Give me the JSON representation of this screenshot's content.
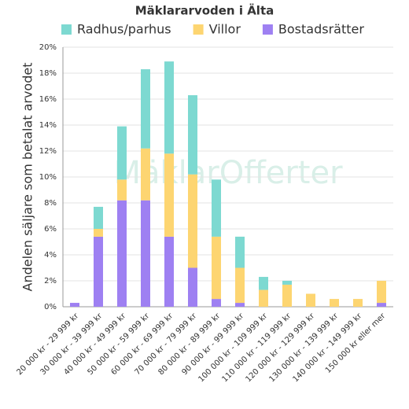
{
  "chart_data": {
    "type": "stacked_bar",
    "title": "Mäklararvoden i Älta",
    "watermark": "MäklarOfferter",
    "y_label": "Andelen säljare som betalat arvodet",
    "categories": [
      "20 000 kr - 29 999 kr",
      "30 000 kr - 39 999 kr",
      "40 000 kr - 49 999 kr",
      "50 000 kr - 59 999 kr",
      "60 000 kr - 69 999 kr",
      "70 000 kr - 79 999 kr",
      "80 000 kr - 89 999 kr",
      "90 000 kr - 99 999 kr",
      "100 000 kr - 109 999 kr",
      "110 000 kr - 119 999 kr",
      "120 000 kr - 129 999 kr",
      "130 000 kr - 139 999 kr",
      "140 000 kr - 149 999 kr",
      "150 000 kr eller mer"
    ],
    "series": [
      {
        "name": "Bostadsrätter",
        "color": "#9e80f2",
        "values": [
          0.3,
          5.4,
          8.2,
          8.2,
          5.4,
          3.0,
          0.6,
          0.3,
          0,
          0,
          0,
          0,
          0,
          0.3
        ]
      },
      {
        "name": "Villor",
        "color": "#fdd571",
        "values": [
          0,
          0.6,
          1.6,
          4.0,
          6.4,
          7.2,
          4.8,
          2.7,
          1.3,
          1.7,
          1.0,
          0.6,
          0.6,
          1.7
        ]
      },
      {
        "name": "Radhus/parhus",
        "color": "#7dd9d1",
        "values": [
          0,
          1.7,
          4.1,
          6.1,
          7.1,
          6.1,
          4.4,
          2.4,
          1.0,
          0.3,
          0,
          0,
          0,
          0
        ]
      }
    ],
    "legend_order": [
      2,
      1,
      0
    ],
    "ylim": [
      0,
      20
    ],
    "yticks": [
      {
        "value": 0,
        "label": "0%"
      },
      {
        "value": 2,
        "label": "2%"
      },
      {
        "value": 4,
        "label": "4%"
      },
      {
        "value": 6,
        "label": "6%"
      },
      {
        "value": 8,
        "label": "8%"
      },
      {
        "value": 10,
        "label": "10%"
      },
      {
        "value": 12,
        "label": "12%"
      },
      {
        "value": 14,
        "label": "14%"
      },
      {
        "value": 16,
        "label": "16%"
      },
      {
        "value": 18,
        "label": "18%"
      },
      {
        "value": 20,
        "label": "20%"
      }
    ],
    "grid": true
  }
}
